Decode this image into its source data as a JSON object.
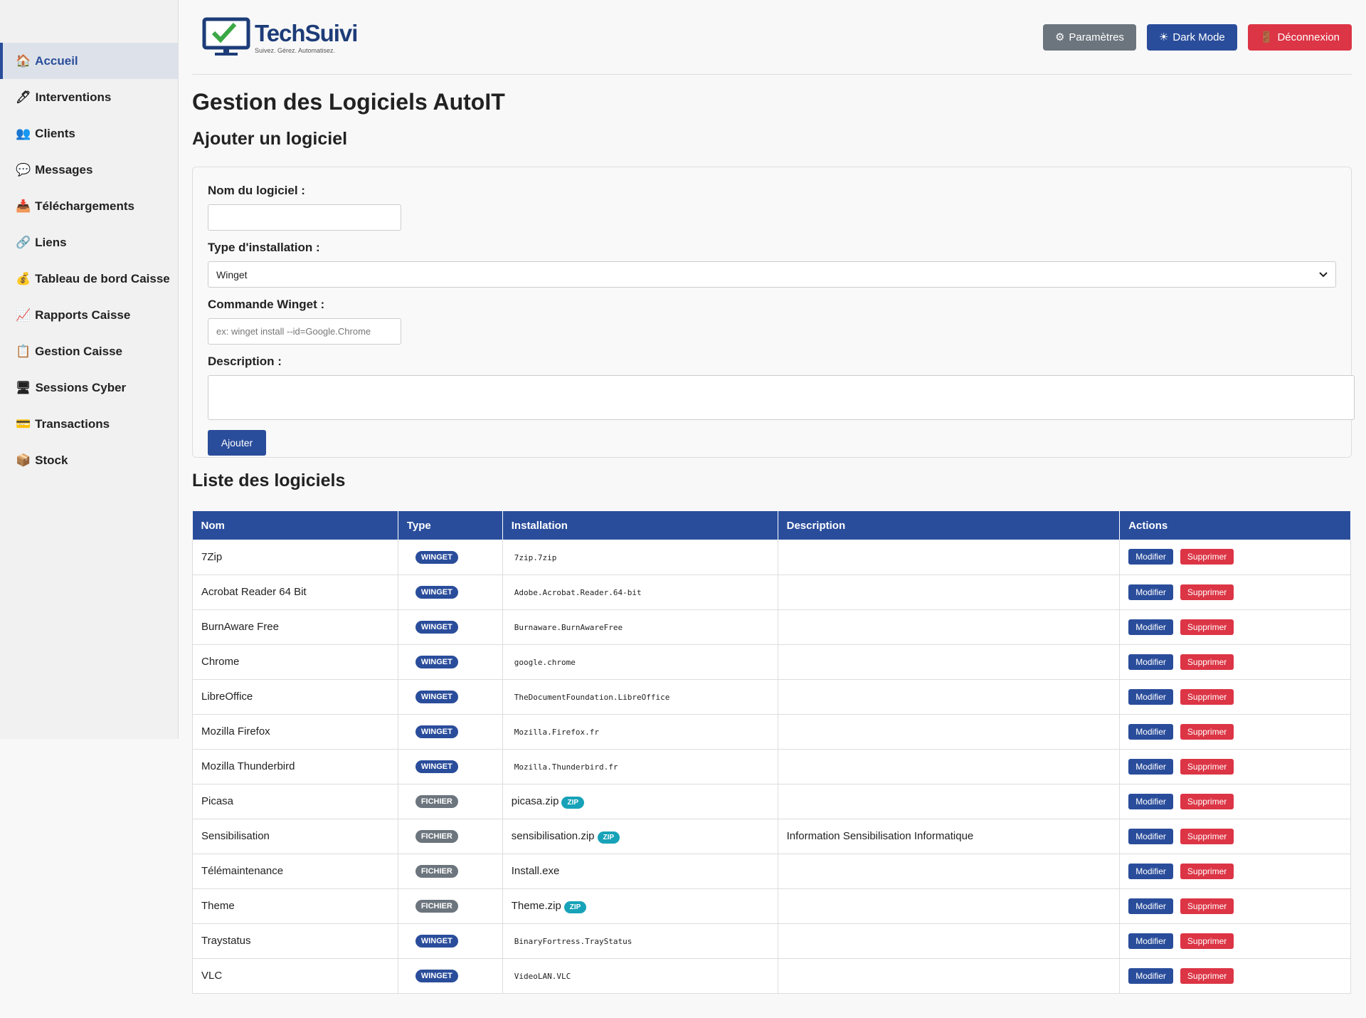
{
  "sidebar": {
    "items": [
      {
        "icon": "🏠",
        "label": "Accueil",
        "active": true
      },
      {
        "icon": "🖊",
        "label": "Interventions"
      },
      {
        "icon": "👥",
        "label": "Clients"
      },
      {
        "icon": "💬",
        "label": "Messages"
      },
      {
        "icon": "📥",
        "label": "Téléchargements"
      },
      {
        "icon": "🔗",
        "label": "Liens"
      },
      {
        "icon": "💰",
        "label": "Tableau de bord Caisse"
      },
      {
        "icon": "📈",
        "label": "Rapports Caisse"
      },
      {
        "icon": "📋",
        "label": "Gestion Caisse"
      },
      {
        "icon": "🖥",
        "label": "Sessions Cyber"
      },
      {
        "icon": "💳",
        "label": "Transactions"
      },
      {
        "icon": "📦",
        "label": "Stock"
      }
    ]
  },
  "header": {
    "logo_title": "TechSuivi",
    "logo_tagline": "Suivez. Gérez. Automatisez.",
    "buttons": [
      {
        "icon": "⚙",
        "label": "Paramètres",
        "color": "#6c757d"
      },
      {
        "icon": "☀",
        "label": "Dark Mode",
        "color": "#2a4d9b"
      },
      {
        "icon": "🚪",
        "label": "Déconnexion",
        "color": "#dc3545"
      }
    ]
  },
  "page_title": "Gestion des Logiciels AutoIT",
  "form": {
    "heading": "Ajouter un logiciel",
    "name_label": "Nom du logiciel :",
    "type_label": "Type d'installation :",
    "type_value": "Winget",
    "command_label": "Commande Winget :",
    "command_placeholder": "ex: winget install --id=Google.Chrome",
    "description_label": "Description :",
    "submit": "Ajouter"
  },
  "table": {
    "heading": "Liste des logiciels",
    "columns": [
      "Nom",
      "Type",
      "Installation",
      "Description",
      "Actions"
    ],
    "actions": [
      "Modifier",
      "Supprimer"
    ],
    "rows": [
      {
        "name": "7Zip",
        "type": "WINGET",
        "install": "7zip.7zip"
      },
      {
        "name": "Acrobat Reader 64 Bit",
        "type": "WINGET",
        "install": "Adobe.Acrobat.Reader.64-bit"
      },
      {
        "name": "BurnAware Free",
        "type": "WINGET",
        "install": "Burnaware.BurnAwareFree"
      },
      {
        "name": "Chrome",
        "type": "WINGET",
        "install": "google.chrome"
      },
      {
        "name": "LibreOffice",
        "type": "WINGET",
        "install": "TheDocumentFoundation.LibreOffice"
      },
      {
        "name": "Mozilla Firefox",
        "type": "WINGET",
        "install": "Mozilla.Firefox.fr"
      },
      {
        "name": "Mozilla Thunderbird",
        "type": "WINGET",
        "install": "Mozilla.Thunderbird.fr"
      },
      {
        "name": "Picasa",
        "type": "FICHIER",
        "install": "picasa.zip",
        "badge": "ZIP"
      },
      {
        "name": "Sensibilisation",
        "type": "FICHIER",
        "install": "sensibilisation.zip",
        "badge": "ZIP",
        "description": "Information Sensibilisation Informatique"
      },
      {
        "name": "Télémaintenance",
        "type": "FICHIER",
        "install": "Install.exe"
      },
      {
        "name": "Theme",
        "type": "FICHIER",
        "install": "Theme.zip",
        "badge": "ZIP"
      },
      {
        "name": "Traystatus",
        "type": "WINGET",
        "install": "BinaryFortress.TrayStatus"
      },
      {
        "name": "VLC",
        "type": "WINGET",
        "install": "VideoLAN.VLC"
      }
    ]
  }
}
